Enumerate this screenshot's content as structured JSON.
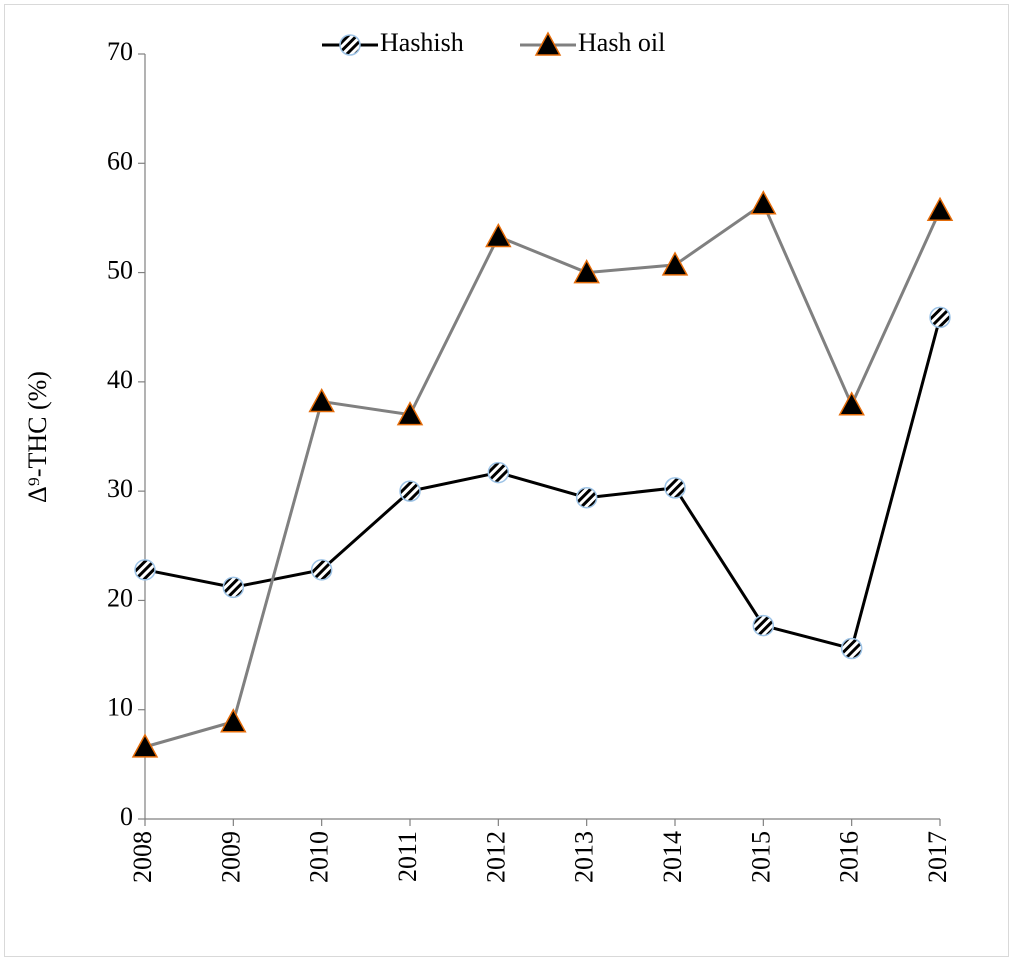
{
  "chart_data": {
    "type": "line",
    "y_label": "Δ⁹-THC (%)",
    "categories": [
      "2008",
      "2009",
      "2010",
      "2011",
      "2012",
      "2013",
      "2014",
      "2015",
      "2016",
      "2017"
    ],
    "series": [
      {
        "name": "Hashish",
        "color": "#000000",
        "values": [
          22.8,
          21.2,
          22.8,
          30.0,
          31.7,
          29.4,
          30.3,
          17.7,
          15.6,
          45.9
        ]
      },
      {
        "name": "Hash oil",
        "color": "#808080",
        "values": [
          6.6,
          8.9,
          38.2,
          37.0,
          53.3,
          50.0,
          50.7,
          56.3,
          37.9,
          55.7
        ]
      }
    ],
    "ylim": [
      0,
      70
    ],
    "yticks": [
      0,
      10,
      20,
      30,
      40,
      50,
      60,
      70
    ],
    "grid": false,
    "legend": "top"
  }
}
